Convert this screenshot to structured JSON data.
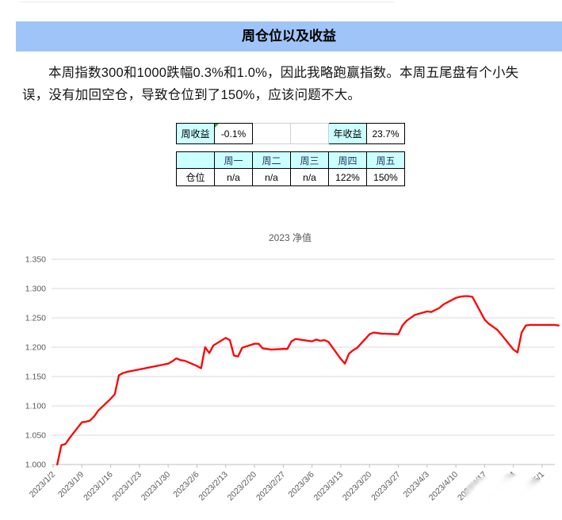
{
  "header": {
    "title": "周仓位以及收益",
    "bg": "#9fc5f8"
  },
  "paragraph": {
    "text": "本周指数300和1000跌幅0.3%和1.0%，因此我略跑赢指数。本周五尾盘有个小失误，没有加回空仓，导致仓位到了150%，应该问题不大。"
  },
  "summary_table": {
    "week_label": "周收益",
    "week_value": "-0.1%",
    "year_label": "年收益",
    "year_value": "23.7%",
    "header_bg": "#ccffff"
  },
  "position_table": {
    "row_label": "仓位",
    "columns": [
      "周一",
      "周二",
      "周三",
      "周四",
      "周五"
    ],
    "values": [
      "n/a",
      "n/a",
      "n/a",
      "122%",
      "150%"
    ],
    "header_bg": "#ccffff",
    "header_color": "#1f3864"
  },
  "chart_data": {
    "type": "line",
    "title": "2023 净值",
    "series_name": "净值",
    "line_color": "#fe0000",
    "grid": true,
    "legend": "none",
    "ylim": [
      1.0,
      1.35
    ],
    "y_ticks": [
      "1.000",
      "1.050",
      "1.100",
      "1.150",
      "1.200",
      "1.250",
      "1.300",
      "1.350"
    ],
    "x_tick_labels": [
      "2023/1/2",
      "2023/1/9",
      "2023/1/16",
      "2023/1/23",
      "2023/1/30",
      "2023/2/6",
      "2023/2/13",
      "2023/2/20",
      "2023/2/27",
      "2023/3/6",
      "2023/3/13",
      "2023/3/20",
      "2023/3/27",
      "2023/4/3",
      "2023/4/10",
      "2023/4/17",
      "2023/4/24",
      "2023/5/1"
    ],
    "x": [
      "2023/1/3",
      "2023/1/4",
      "2023/1/5",
      "2023/1/6",
      "2023/1/9",
      "2023/1/10",
      "2023/1/11",
      "2023/1/12",
      "2023/1/13",
      "2023/1/16",
      "2023/1/17",
      "2023/1/18",
      "2023/1/19",
      "2023/1/20",
      "2023/1/30",
      "2023/1/31",
      "2023/2/1",
      "2023/2/2",
      "2023/2/3",
      "2023/2/6",
      "2023/2/7",
      "2023/2/8",
      "2023/2/9",
      "2023/2/10",
      "2023/2/13",
      "2023/2/14",
      "2023/2/15",
      "2023/2/16",
      "2023/2/17",
      "2023/2/20",
      "2023/2/21",
      "2023/2/22",
      "2023/2/23",
      "2023/2/24",
      "2023/2/27",
      "2023/2/28",
      "2023/3/1",
      "2023/3/2",
      "2023/3/3",
      "2023/3/6",
      "2023/3/7",
      "2023/3/8",
      "2023/3/9",
      "2023/3/10",
      "2023/3/13",
      "2023/3/14",
      "2023/3/15",
      "2023/3/16",
      "2023/3/17",
      "2023/3/20",
      "2023/3/21",
      "2023/3/22",
      "2023/3/23",
      "2023/3/24",
      "2023/3/27",
      "2023/3/28",
      "2023/3/29",
      "2023/3/30",
      "2023/3/31",
      "2023/4/3",
      "2023/4/4",
      "2023/4/6",
      "2023/4/7",
      "2023/4/10",
      "2023/4/11",
      "2023/4/12",
      "2023/4/13",
      "2023/4/14",
      "2023/4/17",
      "2023/4/18",
      "2023/4/19",
      "2023/4/20",
      "2023/4/21",
      "2023/4/24",
      "2023/4/25",
      "2023/4/26",
      "2023/4/27",
      "2023/4/28",
      "2023/5/4",
      "2023/5/5"
    ],
    "values": [
      1.0,
      1.033,
      1.035,
      1.045,
      1.072,
      1.073,
      1.075,
      1.082,
      1.092,
      1.112,
      1.12,
      1.152,
      1.156,
      1.158,
      1.172,
      1.176,
      1.181,
      1.178,
      1.177,
      1.168,
      1.164,
      1.2,
      1.19,
      1.203,
      1.216,
      1.212,
      1.186,
      1.184,
      1.199,
      1.206,
      1.206,
      1.198,
      1.197,
      1.196,
      1.197,
      1.197,
      1.21,
      1.214,
      1.213,
      1.21,
      1.213,
      1.211,
      1.212,
      1.209,
      1.18,
      1.172,
      1.189,
      1.195,
      1.199,
      1.222,
      1.225,
      1.224,
      1.223,
      1.223,
      1.222,
      1.237,
      1.245,
      1.25,
      1.255,
      1.261,
      1.26,
      1.267,
      1.273,
      1.284,
      1.286,
      1.287,
      1.287,
      1.286,
      1.247,
      1.24,
      1.235,
      1.23,
      1.222,
      1.196,
      1.191,
      1.225,
      1.237,
      1.238,
      1.238,
      1.237
    ]
  }
}
